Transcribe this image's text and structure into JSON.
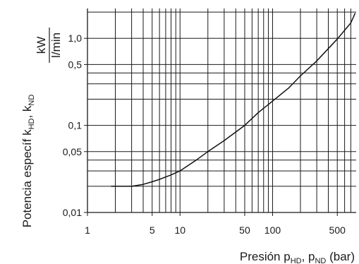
{
  "chart_data": {
    "type": "line",
    "x_scale": "log",
    "y_scale": "log",
    "xlim": [
      1,
      800
    ],
    "ylim": [
      0.01,
      2.2
    ],
    "grid": true,
    "x_gridlines": [
      2,
      3,
      4,
      5,
      6,
      7,
      8,
      9,
      10,
      20,
      30,
      40,
      50,
      60,
      70,
      80,
      90,
      100,
      200,
      300,
      400,
      500,
      600,
      700
    ],
    "y_gridlines": [
      0.02,
      0.03,
      0.04,
      0.05,
      0.1,
      0.2,
      0.3,
      0.4,
      0.5,
      1.0,
      2.0
    ],
    "x_tick_labels": [
      {
        "value": 1,
        "label": "1"
      },
      {
        "value": 5,
        "label": "5"
      },
      {
        "value": 10,
        "label": "10"
      },
      {
        "value": 50,
        "label": "50"
      },
      {
        "value": 100,
        "label": "100"
      },
      {
        "value": 500,
        "label": "500"
      }
    ],
    "y_tick_labels": [
      {
        "value": 0.01,
        "label": "0,01"
      },
      {
        "value": 0.05,
        "label": "0,05"
      },
      {
        "value": 0.1,
        "label": "0,1"
      },
      {
        "value": 0.5,
        "label": "0,5"
      },
      {
        "value": 1.0,
        "label": "1,0"
      }
    ],
    "xlabel": {
      "main": "Presión p",
      "sub1": "HD",
      "sep": ", p",
      "sub2": "ND",
      "unit": " (bar)"
    },
    "ylabel": {
      "main": "Potencia específ k",
      "sub1": "HD",
      "sep": ", k",
      "sub2": "ND"
    },
    "yunit": {
      "numerator": "kW",
      "denominator": "l/min"
    },
    "series": [
      {
        "x": [
          1.8,
          2.5,
          3.0,
          3.5,
          4.0,
          5.0,
          6.0,
          8.0,
          10,
          15,
          20,
          30,
          50,
          70,
          100,
          150,
          200,
          300,
          500,
          700,
          780
        ],
        "y": [
          0.02,
          0.02,
          0.02,
          0.0205,
          0.021,
          0.0225,
          0.024,
          0.027,
          0.03,
          0.04,
          0.05,
          0.067,
          0.1,
          0.14,
          0.19,
          0.27,
          0.37,
          0.55,
          0.98,
          1.5,
          1.95
        ]
      }
    ],
    "colors": {
      "line": "#111111",
      "grid": "#1a1a1a"
    }
  }
}
